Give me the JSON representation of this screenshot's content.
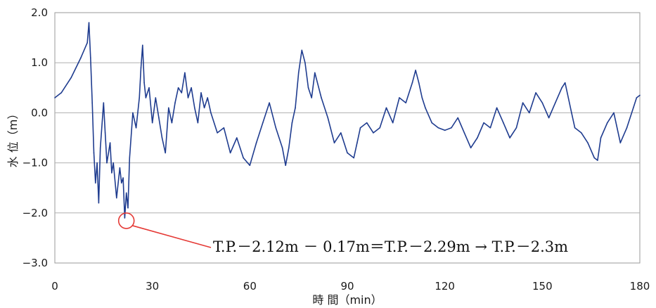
{
  "chart_data": {
    "type": "line",
    "xlabel": "時 間（min）",
    "ylabel": "水 位（m）",
    "xlim": [
      0,
      180
    ],
    "ylim": [
      -3.0,
      2.0
    ],
    "x_ticks": [
      0,
      30,
      60,
      90,
      120,
      150,
      180
    ],
    "x_tick_labels": [
      "0",
      "30",
      "60",
      "90",
      "120",
      "150",
      "180"
    ],
    "y_ticks": [
      2.0,
      1.0,
      0.0,
      -1.0,
      -2.0,
      -3.0
    ],
    "y_tick_labels": [
      "2.0",
      "1.0",
      "0.0",
      "−1.0",
      "−2.0",
      "−3.0"
    ],
    "grid": "horizontal",
    "legend": "none",
    "series": [
      {
        "color": "#1f3c8f",
        "x": [
          0,
          2,
          5,
          8,
          10,
          10.5,
          11,
          11.5,
          12,
          12.5,
          13,
          13.5,
          14,
          15,
          15.5,
          16,
          17,
          17.5,
          18,
          19,
          20,
          20.5,
          21,
          21.5,
          22,
          22.5,
          23,
          24,
          25,
          26,
          26.5,
          27,
          27.5,
          28,
          29,
          30,
          31,
          32,
          33,
          34,
          35,
          36,
          37,
          38,
          39,
          40,
          41,
          42,
          43,
          44,
          45,
          46,
          47,
          48,
          50,
          52,
          54,
          56,
          58,
          60,
          62,
          64,
          66,
          68,
          70,
          71,
          72,
          73,
          74,
          75,
          76,
          77,
          78,
          79,
          80,
          82,
          84,
          86,
          88,
          90,
          92,
          93,
          94,
          96,
          98,
          100,
          102,
          104,
          106,
          108,
          110,
          111,
          112,
          113,
          114,
          116,
          118,
          120,
          122,
          124,
          126,
          128,
          130,
          132,
          134,
          136,
          138,
          140,
          142,
          144,
          146,
          148,
          150,
          152,
          154,
          156,
          157,
          158,
          159,
          160,
          162,
          164,
          166,
          167,
          168,
          170,
          172,
          174,
          176,
          178,
          179,
          180
        ],
        "y": [
          0.3,
          0.4,
          0.7,
          1.1,
          1.4,
          1.8,
          1.1,
          0.2,
          -0.8,
          -1.4,
          -1.0,
          -1.8,
          -0.7,
          0.2,
          -0.4,
          -1.0,
          -0.6,
          -1.2,
          -1.0,
          -1.7,
          -1.1,
          -1.4,
          -1.3,
          -2.1,
          -1.6,
          -1.9,
          -0.9,
          0.0,
          -0.3,
          0.3,
          0.9,
          1.35,
          0.6,
          0.3,
          0.5,
          -0.2,
          0.3,
          -0.1,
          -0.5,
          -0.8,
          0.1,
          -0.2,
          0.2,
          0.5,
          0.4,
          0.8,
          0.3,
          0.5,
          0.1,
          -0.2,
          0.4,
          0.1,
          0.3,
          0.0,
          -0.4,
          -0.3,
          -0.8,
          -0.5,
          -0.9,
          -1.05,
          -0.6,
          -0.2,
          0.2,
          -0.3,
          -0.7,
          -1.05,
          -0.7,
          -0.2,
          0.1,
          0.8,
          1.25,
          1.0,
          0.5,
          0.3,
          0.8,
          0.3,
          -0.1,
          -0.6,
          -0.4,
          -0.8,
          -0.9,
          -0.6,
          -0.3,
          -0.2,
          -0.4,
          -0.3,
          0.1,
          -0.2,
          0.3,
          0.2,
          0.6,
          0.85,
          0.6,
          0.3,
          0.1,
          -0.2,
          -0.3,
          -0.35,
          -0.3,
          -0.1,
          -0.4,
          -0.7,
          -0.5,
          -0.2,
          -0.3,
          0.1,
          -0.2,
          -0.5,
          -0.3,
          0.2,
          0.0,
          0.4,
          0.2,
          -0.1,
          0.2,
          0.5,
          0.6,
          0.3,
          0.0,
          -0.3,
          -0.4,
          -0.6,
          -0.9,
          -0.95,
          -0.5,
          -0.2,
          0.0,
          -0.6,
          -0.3,
          0.1,
          0.3,
          0.35
        ]
      }
    ],
    "annotation": {
      "text": "T.P.－2.12m － 0.17m＝T.P.－2.29m → T.P.－2.3m",
      "target": {
        "x": 22,
        "y": -2.1
      }
    }
  }
}
